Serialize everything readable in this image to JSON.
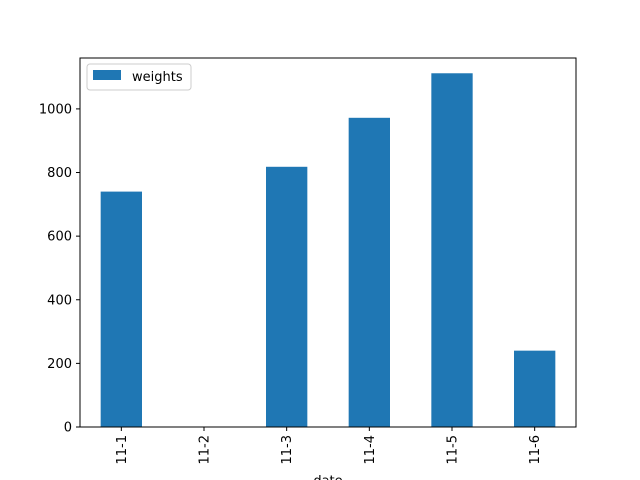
{
  "chart_data": {
    "type": "bar",
    "categories": [
      "11-1",
      "11-2",
      "11-3",
      "11-4",
      "11-5",
      "11-6"
    ],
    "series": [
      {
        "name": "weights",
        "values": [
          740,
          0,
          818,
          972,
          1112,
          240
        ],
        "color": "#1f77b4"
      }
    ],
    "xlabel": "date",
    "ylabel": "",
    "ylim": [
      0,
      1160
    ],
    "yticks": [
      0,
      200,
      400,
      600,
      800,
      1000
    ],
    "grid": false,
    "legend_position": "top-left",
    "x_tick_rotation": "vertical"
  }
}
